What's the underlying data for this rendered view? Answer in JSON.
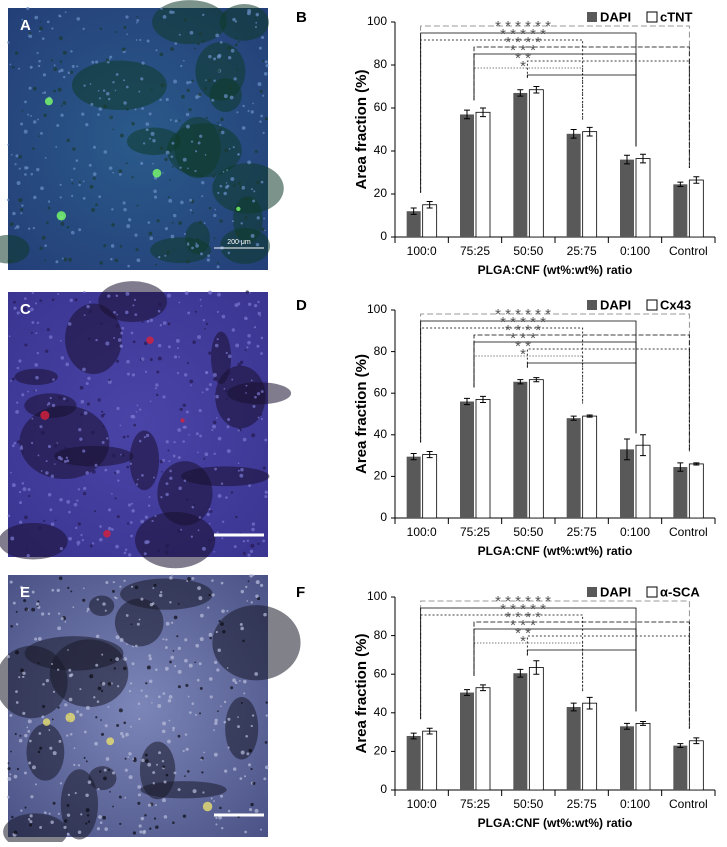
{
  "images": [
    {
      "label": "A",
      "scale": "200 μm"
    },
    {
      "label": "C"
    },
    {
      "label": "E"
    }
  ],
  "chart_data": [
    {
      "type": "bar",
      "label": "B",
      "ylabel": "Area fraction (%)",
      "xlabel": "PLGA:CNF (wt%:wt%) ratio",
      "categories": [
        "100:0",
        "75:25",
        "50:50",
        "25:75",
        "0:100",
        "Control"
      ],
      "series": [
        {
          "name": "DAPI",
          "color": "#595959",
          "values": [
            12,
            57,
            67,
            48,
            36,
            24.5
          ],
          "errors": [
            1.5,
            2,
            1.5,
            2,
            2,
            1
          ]
        },
        {
          "name": "cTNT",
          "color": "#ffffff",
          "values": [
            15,
            58,
            68.5,
            49,
            36.5,
            26.5
          ],
          "errors": [
            1.5,
            2,
            1.5,
            2,
            2,
            1.5
          ]
        }
      ],
      "ylim": [
        0,
        100
      ],
      "yticks": [
        0,
        20,
        40,
        60,
        80,
        100
      ],
      "legend": "top-right",
      "significance": [
        "* * * * * *",
        "* * * * *",
        "* * * *",
        "* * *",
        "* *",
        "*"
      ]
    },
    {
      "type": "bar",
      "label": "D",
      "ylabel": "Area fraction (%)",
      "xlabel": "PLGA:CNF (wt%:wt%) ratio",
      "categories": [
        "100:0",
        "75:25",
        "50:50",
        "25:75",
        "0:100",
        "Control"
      ],
      "series": [
        {
          "name": "DAPI",
          "color": "#595959",
          "values": [
            29.5,
            56,
            65.5,
            48,
            33,
            24.5
          ],
          "errors": [
            1.5,
            1.5,
            1,
            1,
            5,
            2
          ]
        },
        {
          "name": "Cx43",
          "color": "#ffffff",
          "values": [
            30.5,
            57,
            66.5,
            49,
            35,
            26
          ],
          "errors": [
            1.5,
            1.5,
            1,
            0.5,
            5,
            0.5
          ]
        }
      ],
      "ylim": [
        0,
        100
      ],
      "yticks": [
        0,
        20,
        40,
        60,
        80,
        100
      ],
      "legend": "top-right",
      "significance": [
        "* * * * * *",
        "* * * * *",
        "* * * *",
        "* * *",
        "* *",
        "*"
      ]
    },
    {
      "type": "bar",
      "label": "F",
      "ylabel": "Area fraction (%)",
      "xlabel": "PLGA:CNF (wt%:wt%) ratio",
      "categories": [
        "100:0",
        "75:25",
        "50:50",
        "25:75",
        "0:100",
        "Control"
      ],
      "series": [
        {
          "name": "DAPI",
          "color": "#595959",
          "values": [
            28,
            50.5,
            60.5,
            43,
            33,
            23
          ],
          "errors": [
            1.5,
            1.5,
            2,
            2,
            1.5,
            1
          ]
        },
        {
          "name": "α-SCA",
          "color": "#ffffff",
          "values": [
            30.5,
            53,
            63.5,
            45,
            34.5,
            25.5
          ],
          "errors": [
            1.5,
            1.5,
            3.5,
            3,
            1,
            1.5
          ]
        }
      ],
      "ylim": [
        0,
        100
      ],
      "yticks": [
        0,
        20,
        40,
        60,
        80,
        100
      ],
      "legend": "top-right",
      "significance": [
        "* * * * * *",
        "* * * * *",
        "* * * *",
        "* * *",
        "* *",
        "*"
      ]
    }
  ]
}
